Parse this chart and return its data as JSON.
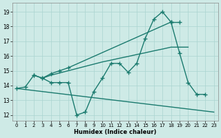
{
  "xlabel": "Humidex (Indice chaleur)",
  "x_ticks": [
    0,
    1,
    2,
    3,
    4,
    5,
    6,
    7,
    8,
    9,
    10,
    11,
    12,
    13,
    14,
    15,
    16,
    17,
    18,
    19,
    20,
    21,
    22,
    23
  ],
  "ylim": [
    11.6,
    19.6
  ],
  "xlim": [
    -0.5,
    23.5
  ],
  "yticks": [
    12,
    13,
    14,
    15,
    16,
    17,
    18,
    19
  ],
  "bg_color": "#ceeae6",
  "grid_color": "#aad4d0",
  "line_color": "#1a7a6e",
  "line_lw": 1.0,
  "marker_size": 4,
  "line1_x": [
    0,
    1,
    2,
    3,
    4,
    5,
    6,
    7,
    8,
    9,
    10,
    11,
    12,
    13,
    14,
    15,
    16,
    17,
    18,
    19,
    20,
    21,
    22
  ],
  "line1_y": [
    13.8,
    13.9,
    14.7,
    14.5,
    14.2,
    14.2,
    14.2,
    12.0,
    12.2,
    13.6,
    14.5,
    15.5,
    15.5,
    14.9,
    15.5,
    17.2,
    18.5,
    19.0,
    18.3,
    16.2,
    14.2,
    13.4,
    13.4
  ],
  "line2_x": [
    2,
    3,
    4,
    5,
    6,
    18,
    19
  ],
  "line2_y": [
    14.7,
    14.5,
    14.8,
    15.0,
    15.2,
    18.3,
    18.3
  ],
  "line3_x": [
    3,
    4,
    5,
    6,
    7,
    8,
    9,
    10,
    11,
    12,
    13,
    14,
    15,
    16,
    17,
    18,
    19,
    20
  ],
  "line3_y": [
    14.5,
    14.7,
    14.85,
    15.0,
    15.15,
    15.3,
    15.45,
    15.6,
    15.72,
    15.85,
    15.97,
    16.1,
    16.22,
    16.35,
    16.47,
    16.6,
    16.6,
    16.6
  ],
  "line4_x": [
    0,
    23
  ],
  "line4_y": [
    13.8,
    12.2
  ]
}
